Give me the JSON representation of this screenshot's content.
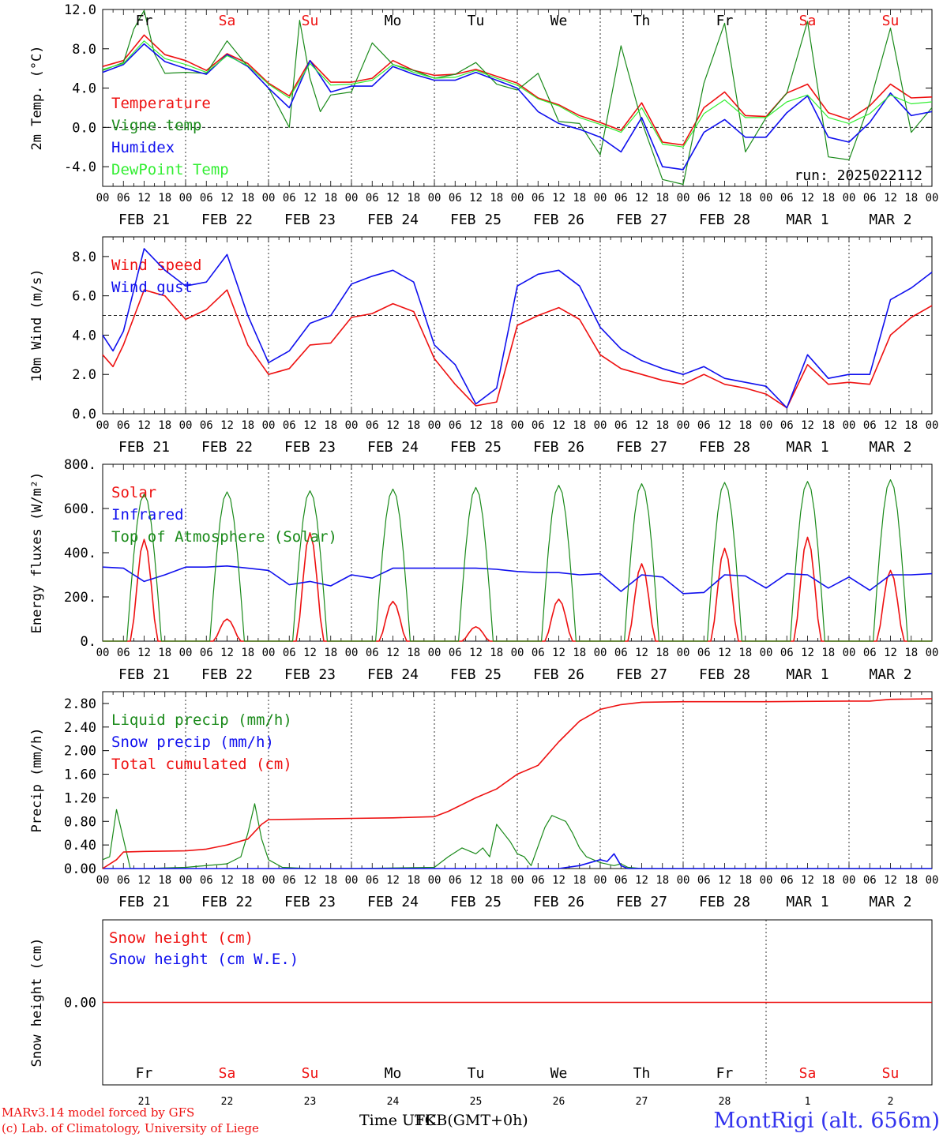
{
  "colors": {
    "red": "#ee1111",
    "dark_green": "#1a8a1a",
    "blue": "#1010ee",
    "light_green": "#33ee33",
    "axis": "#000000",
    "site": "#3333ee"
  },
  "days": [
    "Fr",
    "Sa",
    "Su",
    "Mo",
    "Tu",
    "We",
    "Th",
    "Fr",
    "Sa",
    "Su"
  ],
  "weekend_days": [
    1,
    2,
    8,
    9
  ],
  "date_labels": [
    "FEB 21",
    "FEB 22",
    "FEB 23",
    "FEB 24",
    "FEB 25",
    "FEB 26",
    "FEB 27",
    "FEB 28",
    "MAR  1",
    "MAR  2"
  ],
  "day_numbers": [
    "21",
    "22",
    "23",
    "24",
    "25",
    "26",
    "27",
    "28",
    "1",
    "2"
  ],
  "hour_ticks": [
    "00",
    "06",
    "12",
    "18"
  ],
  "hour_tick_end": "00",
  "run_label": "run: 2025022112",
  "footer": {
    "model": "MARv3.14 model forced by GFS",
    "copyright": "(c) Lab. of Climatology, University of Liege",
    "time_axis_a": "Time UTC",
    "time_axis_b": "FKB(GMT+0h)",
    "site": "MontRigi (alt. 656m)"
  },
  "chart_data": [
    {
      "type": "line",
      "ylabel": "2m Temp. (°C)",
      "ylim": [
        -6,
        12
      ],
      "yticks": [
        "12.0",
        "8.0",
        "4.0",
        "0.0",
        "-4.0"
      ],
      "ytick_values": [
        12,
        8,
        4,
        0,
        -4
      ],
      "reference_line": 0,
      "x_unit": "hours since FEB 21 00 UTC",
      "series": [
        {
          "name": "Temperature",
          "color": "red",
          "x": [
            0,
            6,
            12,
            18,
            24,
            30,
            36,
            42,
            48,
            54,
            60,
            66,
            72,
            78,
            84,
            90,
            96,
            102,
            108,
            114,
            120,
            126,
            132,
            138,
            144,
            150,
            156,
            162,
            168,
            174,
            180,
            186,
            192,
            198,
            204,
            210,
            216,
            222,
            228,
            234,
            240
          ],
          "y": [
            6.2,
            6.8,
            9.4,
            7.4,
            6.8,
            5.8,
            7.5,
            6.5,
            4.5,
            3.2,
            6.8,
            4.6,
            4.6,
            5.0,
            6.8,
            5.8,
            5.3,
            5.4,
            5.9,
            5.2,
            4.5,
            3.0,
            2.3,
            1.2,
            0.5,
            -0.3,
            2.5,
            -1.5,
            -1.8,
            2.0,
            3.6,
            1.2,
            1.1,
            3.5,
            4.4,
            1.5,
            0.8,
            2.2,
            4.4,
            3.0,
            3.1
          ]
        },
        {
          "name": "Vigne temp",
          "color": "dark_green",
          "x": [
            0,
            6,
            9,
            12,
            15,
            18,
            24,
            30,
            36,
            42,
            48,
            54,
            57,
            60,
            63,
            66,
            72,
            78,
            84,
            90,
            96,
            102,
            108,
            114,
            120,
            126,
            132,
            138,
            144,
            150,
            156,
            162,
            168,
            174,
            180,
            186,
            192,
            198,
            204,
            210,
            216,
            222,
            228,
            234,
            240
          ],
          "y": [
            5.8,
            6.6,
            10.0,
            11.9,
            7.5,
            5.5,
            5.6,
            5.5,
            8.8,
            6.2,
            4.0,
            0.0,
            10.9,
            5.0,
            1.6,
            3.3,
            3.6,
            8.6,
            6.4,
            5.8,
            5.0,
            5.4,
            6.6,
            4.4,
            3.8,
            5.5,
            0.6,
            0.4,
            -2.8,
            8.3,
            0.6,
            -5.3,
            -5.8,
            4.5,
            10.6,
            -2.5,
            1.0,
            3.5,
            10.8,
            -3.0,
            -3.3,
            2.5,
            10.1,
            -0.5,
            2.0
          ]
        },
        {
          "name": "Humidex",
          "color": "blue",
          "x": [
            0,
            6,
            12,
            18,
            24,
            30,
            36,
            42,
            48,
            54,
            60,
            66,
            72,
            78,
            84,
            90,
            96,
            102,
            108,
            114,
            120,
            126,
            132,
            138,
            144,
            150,
            156,
            162,
            168,
            174,
            180,
            186,
            192,
            198,
            204,
            210,
            216,
            222,
            228,
            234,
            240
          ],
          "y": [
            5.6,
            6.4,
            8.5,
            6.7,
            6.0,
            5.4,
            7.4,
            6.2,
            4.0,
            2.0,
            6.8,
            3.6,
            4.2,
            4.2,
            6.2,
            5.4,
            4.8,
            4.8,
            5.6,
            4.8,
            4.0,
            1.6,
            0.4,
            -0.2,
            -1.0,
            -2.5,
            1.0,
            -4.0,
            -4.3,
            -0.5,
            0.8,
            -1.0,
            -1.0,
            1.5,
            3.2,
            -1.0,
            -1.5,
            0.5,
            3.5,
            1.2,
            1.6
          ]
        },
        {
          "name": "DewPoint Temp",
          "color": "light_green",
          "x": [
            0,
            6,
            12,
            18,
            24,
            30,
            36,
            42,
            48,
            54,
            60,
            66,
            72,
            78,
            84,
            90,
            96,
            102,
            108,
            114,
            120,
            126,
            132,
            138,
            144,
            150,
            156,
            162,
            168,
            174,
            180,
            186,
            192,
            198,
            204,
            210,
            216,
            222,
            228,
            234,
            240
          ],
          "y": [
            5.9,
            6.5,
            8.8,
            7.0,
            6.4,
            5.6,
            7.3,
            6.3,
            4.4,
            3.0,
            6.5,
            4.3,
            4.4,
            4.8,
            6.4,
            5.6,
            5.0,
            5.1,
            5.8,
            5.0,
            4.3,
            2.9,
            2.2,
            1.0,
            0.3,
            -0.5,
            2.0,
            -1.7,
            -2.0,
            1.4,
            2.8,
            1.0,
            1.0,
            2.6,
            3.3,
            1.0,
            0.4,
            1.4,
            3.3,
            2.4,
            2.6
          ]
        }
      ]
    },
    {
      "type": "line",
      "ylabel": "10m Wind (m/s)",
      "ylim": [
        0,
        9
      ],
      "yticks": [
        "8.0",
        "6.0",
        "4.0",
        "2.0",
        "0.0"
      ],
      "ytick_values": [
        8,
        6,
        4,
        2,
        0
      ],
      "reference_line": 5,
      "series": [
        {
          "name": "Wind speed",
          "color": "red",
          "x": [
            0,
            3,
            6,
            12,
            18,
            24,
            30,
            36,
            42,
            48,
            54,
            60,
            66,
            72,
            78,
            84,
            90,
            96,
            102,
            108,
            114,
            120,
            126,
            132,
            138,
            144,
            150,
            156,
            162,
            168,
            174,
            180,
            186,
            192,
            198,
            204,
            210,
            216,
            222,
            228,
            234,
            240
          ],
          "y": [
            3.0,
            2.4,
            3.5,
            6.3,
            6.0,
            4.8,
            5.3,
            6.3,
            3.5,
            2.0,
            2.3,
            3.5,
            3.6,
            4.9,
            5.1,
            5.6,
            5.2,
            2.8,
            1.5,
            0.4,
            0.6,
            4.5,
            5.0,
            5.4,
            4.8,
            3.0,
            2.3,
            2.0,
            1.7,
            1.5,
            2.0,
            1.5,
            1.3,
            1.0,
            0.3,
            2.5,
            1.5,
            1.6,
            1.5,
            4.0,
            4.9,
            5.5
          ]
        },
        {
          "name": "Wind gust",
          "color": "blue",
          "x": [
            0,
            3,
            6,
            12,
            18,
            24,
            30,
            36,
            42,
            48,
            54,
            60,
            66,
            72,
            78,
            84,
            90,
            96,
            102,
            108,
            114,
            120,
            126,
            132,
            138,
            144,
            150,
            156,
            162,
            168,
            174,
            180,
            186,
            192,
            198,
            204,
            210,
            216,
            222,
            228,
            234,
            240
          ],
          "y": [
            4.0,
            3.2,
            4.2,
            8.4,
            7.3,
            6.5,
            6.7,
            8.1,
            5.0,
            2.6,
            3.2,
            4.6,
            5.0,
            6.6,
            7.0,
            7.3,
            6.7,
            3.5,
            2.5,
            0.5,
            1.3,
            6.5,
            7.1,
            7.3,
            6.5,
            4.4,
            3.3,
            2.7,
            2.3,
            2.0,
            2.4,
            1.8,
            1.6,
            1.4,
            0.3,
            3.0,
            1.8,
            2.0,
            2.0,
            5.8,
            6.4,
            7.2
          ]
        }
      ]
    },
    {
      "type": "line",
      "ylabel": "Energy fluxes (W/m²)",
      "ylim": [
        0,
        800
      ],
      "yticks": [
        "800.",
        "600.",
        "400.",
        "200.",
        "0."
      ],
      "ytick_values": [
        800,
        600,
        400,
        200,
        0
      ],
      "series": [
        {
          "name": "Solar",
          "color": "red",
          "daily_peaks": [
            460,
            100,
            490,
            180,
            65,
            190,
            350,
            420,
            470,
            320
          ]
        },
        {
          "name": "Infrared",
          "color": "blue",
          "x": [
            0,
            6,
            12,
            18,
            24,
            30,
            36,
            42,
            48,
            54,
            60,
            66,
            72,
            78,
            84,
            90,
            96,
            102,
            108,
            114,
            120,
            126,
            132,
            138,
            144,
            150,
            156,
            162,
            168,
            174,
            180,
            186,
            192,
            198,
            204,
            210,
            216,
            222,
            228,
            234,
            240
          ],
          "y": [
            335,
            330,
            270,
            300,
            335,
            335,
            340,
            330,
            320,
            255,
            270,
            250,
            300,
            285,
            330,
            330,
            330,
            330,
            330,
            325,
            315,
            310,
            310,
            300,
            305,
            225,
            300,
            290,
            215,
            220,
            300,
            295,
            240,
            305,
            300,
            240,
            290,
            230,
            300,
            300,
            305
          ]
        },
        {
          "name": "Top of Atmosphere (Solar)",
          "color": "dark_green",
          "daily_peaks": [
            665,
            675,
            680,
            688,
            695,
            705,
            712,
            718,
            722,
            730
          ]
        }
      ]
    },
    {
      "type": "line",
      "ylabel": "Precip (mm/h)",
      "ylim": [
        0,
        3.0
      ],
      "yticks": [
        "2.80",
        "2.40",
        "2.00",
        "1.60",
        "1.20",
        "0.80",
        "0.40",
        "0.00"
      ],
      "ytick_values": [
        2.8,
        2.4,
        2.0,
        1.6,
        1.2,
        0.8,
        0.4,
        0
      ],
      "series": [
        {
          "name": "Liquid precip (mm/h)",
          "color": "dark_green",
          "x": [
            0,
            2,
            4,
            6,
            8,
            12,
            24,
            36,
            40,
            42,
            44,
            46,
            48,
            52,
            60,
            72,
            96,
            100,
            104,
            108,
            110,
            112,
            114,
            118,
            120,
            122,
            124,
            128,
            130,
            132,
            134,
            136,
            138,
            140,
            144,
            148,
            150,
            152,
            156,
            240
          ],
          "y": [
            0.15,
            0.2,
            1.0,
            0.5,
            0.0,
            0.0,
            0.02,
            0.08,
            0.2,
            0.6,
            1.1,
            0.5,
            0.15,
            0.02,
            0.0,
            0.0,
            0.02,
            0.2,
            0.35,
            0.25,
            0.35,
            0.2,
            0.75,
            0.45,
            0.25,
            0.2,
            0.05,
            0.7,
            0.9,
            0.85,
            0.8,
            0.6,
            0.35,
            0.2,
            0.1,
            0.05,
            0.08,
            0.02,
            0.0,
            0.0
          ]
        },
        {
          "name": "Snow precip (mm/h)",
          "color": "blue",
          "x": [
            0,
            132,
            138,
            144,
            146,
            148,
            150,
            152,
            156,
            240
          ],
          "y": [
            0.0,
            0.0,
            0.05,
            0.15,
            0.12,
            0.25,
            0.05,
            0.0,
            0.0,
            0.0
          ]
        },
        {
          "name": "Total cumulated (cm)",
          "color": "red",
          "x": [
            0,
            4,
            6,
            12,
            24,
            30,
            36,
            42,
            46,
            48,
            60,
            72,
            84,
            96,
            100,
            108,
            114,
            120,
            126,
            132,
            138,
            144,
            150,
            156,
            168,
            192,
            216,
            222,
            228,
            240
          ],
          "y": [
            0.0,
            0.15,
            0.28,
            0.29,
            0.3,
            0.33,
            0.4,
            0.5,
            0.75,
            0.83,
            0.84,
            0.85,
            0.86,
            0.88,
            0.97,
            1.2,
            1.35,
            1.6,
            1.75,
            2.15,
            2.5,
            2.7,
            2.78,
            2.82,
            2.83,
            2.83,
            2.84,
            2.84,
            2.87,
            2.88
          ]
        }
      ]
    },
    {
      "type": "line",
      "ylabel": "Snow height (cm)",
      "yticks": [
        "0.00"
      ],
      "ytick_values": [
        0
      ],
      "series": [
        {
          "name": "Snow height (cm)",
          "color": "red",
          "x": [
            0,
            240
          ],
          "y": [
            0,
            0
          ]
        },
        {
          "name": "Snow height (cm W.E.)",
          "color": "blue",
          "x": [],
          "y": []
        }
      ]
    }
  ]
}
